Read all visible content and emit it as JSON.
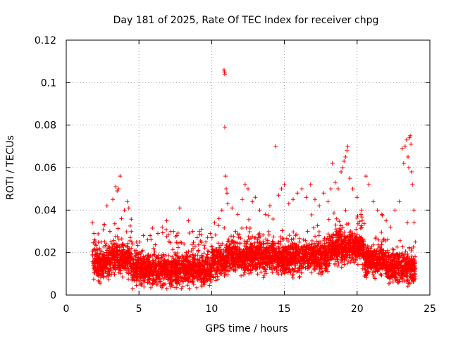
{
  "chart_data": {
    "type": "scatter",
    "title": "Day 181 of 2025, Rate Of TEC Index for receiver chpg",
    "xlabel": "GPS time / hours",
    "ylabel": "ROTI / TECUs",
    "xlim": [
      0,
      25
    ],
    "ylim": [
      0,
      0.12
    ],
    "xticks": [
      0,
      5,
      10,
      15,
      20,
      25
    ],
    "xtick_labels": [
      "0",
      "5",
      "10",
      "15",
      "20",
      "25"
    ],
    "yticks": [
      0,
      0.02,
      0.04,
      0.06,
      0.08,
      0.1,
      0.12
    ],
    "ytick_labels": [
      "0",
      "0.02",
      "0.04",
      "0.06",
      "0.08",
      "0.1",
      "0.12"
    ],
    "grid": true,
    "marker": "+",
    "color": "#ff0000",
    "series": [
      {
        "name": "ROTI",
        "points": [
          [
            1.8,
            0.034
          ],
          [
            1.9,
            0.029
          ],
          [
            2.0,
            0.021
          ],
          [
            2.2,
            0.018
          ],
          [
            2.4,
            0.025
          ],
          [
            2.6,
            0.033
          ],
          [
            2.8,
            0.042
          ],
          [
            3.0,
            0.03
          ],
          [
            3.2,
            0.045
          ],
          [
            3.4,
            0.051
          ],
          [
            3.5,
            0.049
          ],
          [
            3.6,
            0.05
          ],
          [
            3.7,
            0.056
          ],
          [
            3.8,
            0.036
          ],
          [
            4.0,
            0.04
          ],
          [
            4.2,
            0.044
          ],
          [
            4.3,
            0.041
          ],
          [
            4.5,
            0.025
          ],
          [
            4.8,
            0.021
          ],
          [
            5.0,
            0.02
          ],
          [
            5.3,
            0.028
          ],
          [
            5.6,
            0.026
          ],
          [
            6.0,
            0.022
          ],
          [
            6.3,
            0.029
          ],
          [
            6.6,
            0.032
          ],
          [
            6.9,
            0.035
          ],
          [
            7.2,
            0.03
          ],
          [
            7.6,
            0.028
          ],
          [
            7.8,
            0.041
          ],
          [
            8.1,
            0.024
          ],
          [
            8.4,
            0.035
          ],
          [
            8.7,
            0.03
          ],
          [
            9.0,
            0.027
          ],
          [
            9.3,
            0.031
          ],
          [
            9.6,
            0.025
          ],
          [
            9.9,
            0.029
          ],
          [
            10.2,
            0.034
          ],
          [
            10.5,
            0.036
          ],
          [
            10.7,
            0.04
          ],
          [
            10.85,
            0.106
          ],
          [
            10.88,
            0.105
          ],
          [
            10.9,
            0.104
          ],
          [
            10.9,
            0.079
          ],
          [
            10.95,
            0.056
          ],
          [
            11.0,
            0.05
          ],
          [
            11.05,
            0.048
          ],
          [
            11.1,
            0.043
          ],
          [
            11.4,
            0.041
          ],
          [
            11.8,
            0.038
          ],
          [
            12.1,
            0.045
          ],
          [
            12.3,
            0.052
          ],
          [
            12.5,
            0.05
          ],
          [
            12.8,
            0.044
          ],
          [
            13.0,
            0.046
          ],
          [
            13.3,
            0.04
          ],
          [
            13.7,
            0.038
          ],
          [
            14.0,
            0.042
          ],
          [
            14.4,
            0.07
          ],
          [
            14.6,
            0.047
          ],
          [
            14.8,
            0.05
          ],
          [
            15.0,
            0.052
          ],
          [
            15.3,
            0.043
          ],
          [
            15.6,
            0.045
          ],
          [
            15.9,
            0.048
          ],
          [
            16.2,
            0.05
          ],
          [
            16.5,
            0.046
          ],
          [
            16.8,
            0.052
          ],
          [
            17.1,
            0.045
          ],
          [
            17.4,
            0.042
          ],
          [
            17.7,
            0.048
          ],
          [
            18.0,
            0.044
          ],
          [
            18.2,
            0.05
          ],
          [
            18.3,
            0.062
          ],
          [
            18.5,
            0.053
          ],
          [
            18.7,
            0.05
          ],
          [
            18.9,
            0.058
          ],
          [
            19.0,
            0.06
          ],
          [
            19.1,
            0.063
          ],
          [
            19.2,
            0.065
          ],
          [
            19.3,
            0.068
          ],
          [
            19.35,
            0.07
          ],
          [
            19.5,
            0.055
          ],
          [
            19.7,
            0.05
          ],
          [
            20.0,
            0.046
          ],
          [
            20.3,
            0.04
          ],
          [
            20.6,
            0.056
          ],
          [
            20.8,
            0.052
          ],
          [
            21.1,
            0.044
          ],
          [
            21.4,
            0.04
          ],
          [
            21.7,
            0.038
          ],
          [
            22.0,
            0.035
          ],
          [
            22.3,
            0.032
          ],
          [
            22.6,
            0.04
          ],
          [
            22.9,
            0.044
          ],
          [
            23.1,
            0.069
          ],
          [
            23.2,
            0.062
          ],
          [
            23.3,
            0.07
          ],
          [
            23.4,
            0.073
          ],
          [
            23.5,
            0.065
          ],
          [
            23.55,
            0.06
          ],
          [
            23.6,
            0.074
          ],
          [
            23.65,
            0.075
          ],
          [
            23.7,
            0.071
          ],
          [
            23.75,
            0.058
          ],
          [
            23.8,
            0.052
          ],
          [
            23.9,
            0.04
          ],
          [
            24.0,
            0.025
          ]
        ]
      }
    ]
  }
}
